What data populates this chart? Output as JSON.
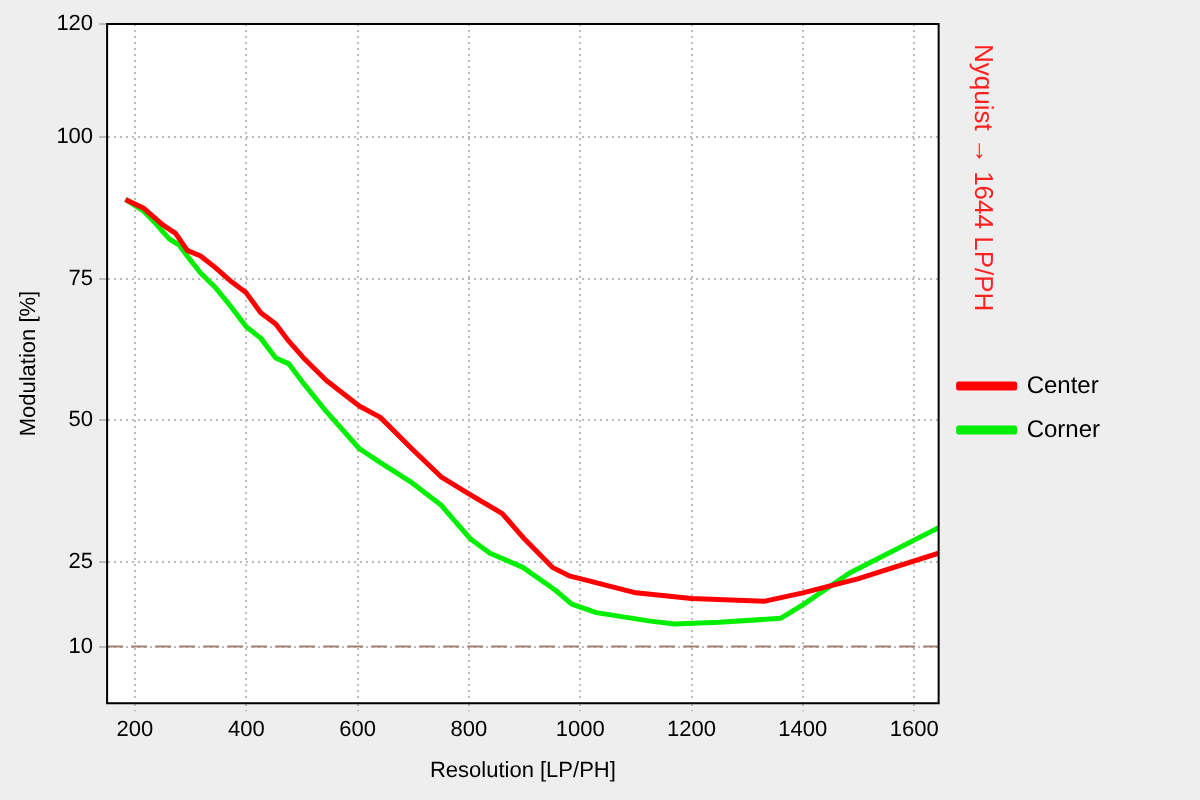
{
  "chart_data": {
    "type": "line",
    "xlabel": "Resolution [LP/PH]",
    "ylabel": "Modulation [%]",
    "xlim": [
      150,
      1644
    ],
    "xticks": [
      200,
      400,
      600,
      800,
      1000,
      1200,
      1400,
      1600
    ],
    "ylim": [
      0,
      120
    ],
    "yticks": [
      10,
      25,
      50,
      75,
      100,
      120
    ],
    "grid": true,
    "legend": "right",
    "marker": "none",
    "line_style": "solid",
    "series": [
      {
        "name": "Center",
        "color": "#ff0000",
        "x": [
          183,
          215,
          250,
          273,
          294,
          318,
          344,
          373,
          400,
          426,
          453,
          476,
          503,
          544,
          603,
          641,
          697,
          750,
          800,
          860,
          900,
          950,
          980,
          1000,
          1100,
          1200,
          1330,
          1400,
          1500,
          1644
        ],
        "values": [
          89,
          87.5,
          84.5,
          83,
          80,
          79,
          77,
          74.5,
          72.5,
          69,
          67,
          64,
          61,
          57,
          52.5,
          50.5,
          45,
          40,
          37,
          33.5,
          29,
          24,
          22.5,
          22,
          19.5,
          18.5,
          18,
          19.5,
          22,
          26.5
        ]
      },
      {
        "name": "Corner",
        "color": "#00ee00",
        "x": [
          183,
          215,
          235,
          262,
          279,
          294,
          318,
          344,
          373,
          400,
          426,
          453,
          476,
          503,
          544,
          603,
          641,
          697,
          750,
          803,
          838,
          897,
          955,
          985,
          1029,
          1126,
          1170,
          1250,
          1360,
          1402,
          1484,
          1644
        ],
        "values": [
          89,
          87,
          85,
          82,
          81,
          79,
          76,
          73.5,
          70,
          66.5,
          64.5,
          61,
          60,
          56.5,
          51.5,
          45,
          42.5,
          39,
          35,
          29,
          26.5,
          24,
          20,
          17.5,
          16,
          14.5,
          14,
          14.3,
          15,
          17.5,
          23,
          31
        ]
      }
    ],
    "ref_lines": [
      {
        "axis": "y",
        "value": 10,
        "color": "#a08070",
        "line_style": "dashed"
      }
    ],
    "annotations": [
      "Nyquist → 1644 LP/PH"
    ]
  }
}
